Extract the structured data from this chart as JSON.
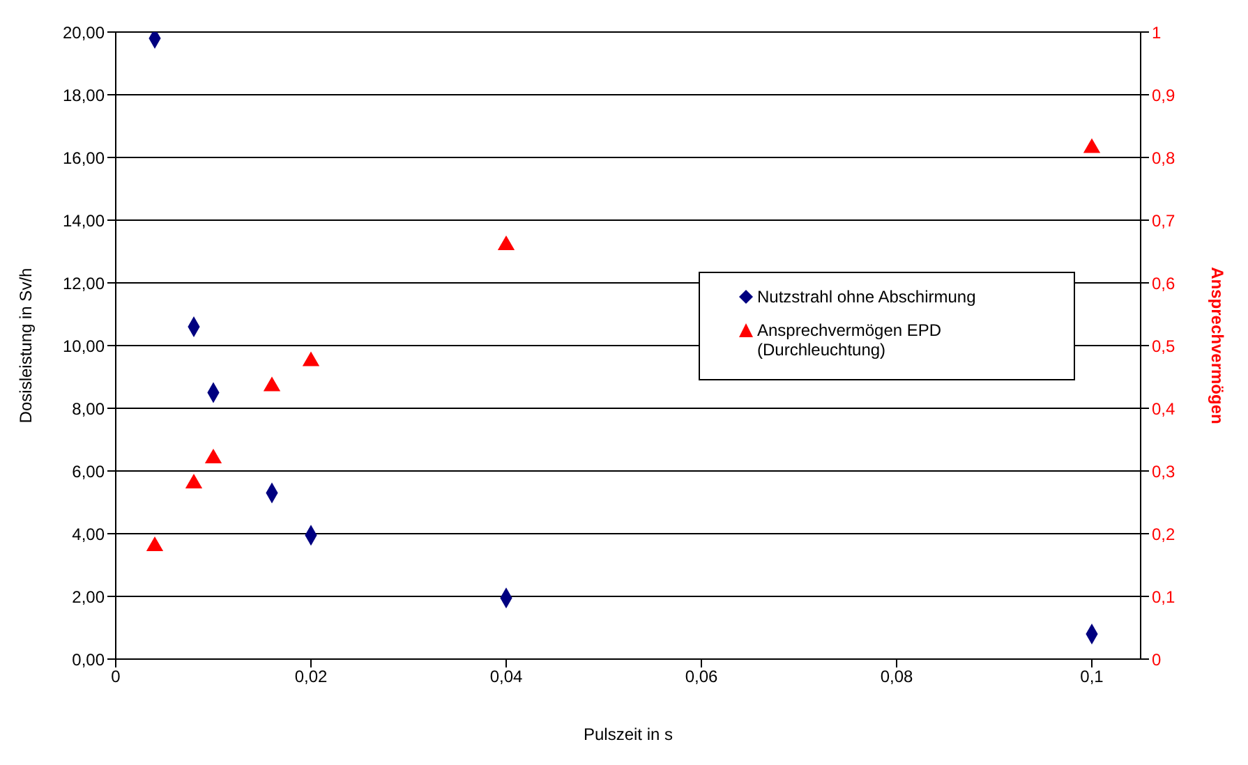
{
  "chart_data": {
    "type": "scatter",
    "xlabel": "Pulszeit in s",
    "ylabel": "Dosisleistung in Sv/h",
    "y2label": "Ansprechvermögen",
    "xlim": [
      0,
      0.105
    ],
    "xticks": [
      0,
      {
        "value": 0.02,
        "label": "0,02"
      },
      {
        "value": 0.04,
        "label": "0,04"
      },
      {
        "value": 0.06,
        "label": "0,06"
      },
      {
        "value": 0.08,
        "label": "0,08"
      },
      {
        "value": 0.1,
        "label": "0,1"
      }
    ],
    "ylim": [
      0,
      20
    ],
    "yticks": [
      {
        "value": 0,
        "label": "0,00"
      },
      {
        "value": 2,
        "label": "2,00"
      },
      {
        "value": 4,
        "label": "4,00"
      },
      {
        "value": 6,
        "label": "6,00"
      },
      {
        "value": 8,
        "label": "8,00"
      },
      {
        "value": 10,
        "label": "10,00"
      },
      {
        "value": 12,
        "label": "12,00"
      },
      {
        "value": 14,
        "label": "14,00"
      },
      {
        "value": 16,
        "label": "16,00"
      },
      {
        "value": 18,
        "label": "18,00"
      },
      {
        "value": 20,
        "label": "20,00"
      }
    ],
    "y2lim": [
      0,
      1
    ],
    "y2ticks": [
      0,
      {
        "value": 0.1,
        "label": "0,1"
      },
      {
        "value": 0.2,
        "label": "0,2"
      },
      {
        "value": 0.3,
        "label": "0,3"
      },
      {
        "value": 0.4,
        "label": "0,4"
      },
      {
        "value": 0.5,
        "label": "0,5"
      },
      {
        "value": 0.6,
        "label": "0,6"
      },
      {
        "value": 0.7,
        "label": "0,7"
      },
      {
        "value": 0.8,
        "label": "0,8"
      },
      {
        "value": 0.9,
        "label": "0,9"
      },
      1
    ],
    "grid": "y",
    "legend": "right",
    "series": [
      {
        "name": "Nutzstrahl ohne Abschirmung",
        "color": "#000080",
        "marker": "diamond",
        "x": [
          0.004,
          0.008,
          0.01,
          0.016,
          0.02,
          0.04,
          0.1
        ],
        "values": [
          19.8,
          10.6,
          8.5,
          5.3,
          3.95,
          1.95,
          0.8
        ]
      },
      {
        "name": "Ansprechvermögen EPD (Durchleuchtung)",
        "color": "#ff0000",
        "marker": "triangle",
        "axis": "y2",
        "x": [
          0.004,
          0.008,
          0.01,
          0.016,
          0.02,
          0.04,
          0.1
        ],
        "values": [
          0.18,
          0.28,
          0.32,
          0.435,
          0.475,
          0.66,
          0.815
        ]
      }
    ]
  }
}
